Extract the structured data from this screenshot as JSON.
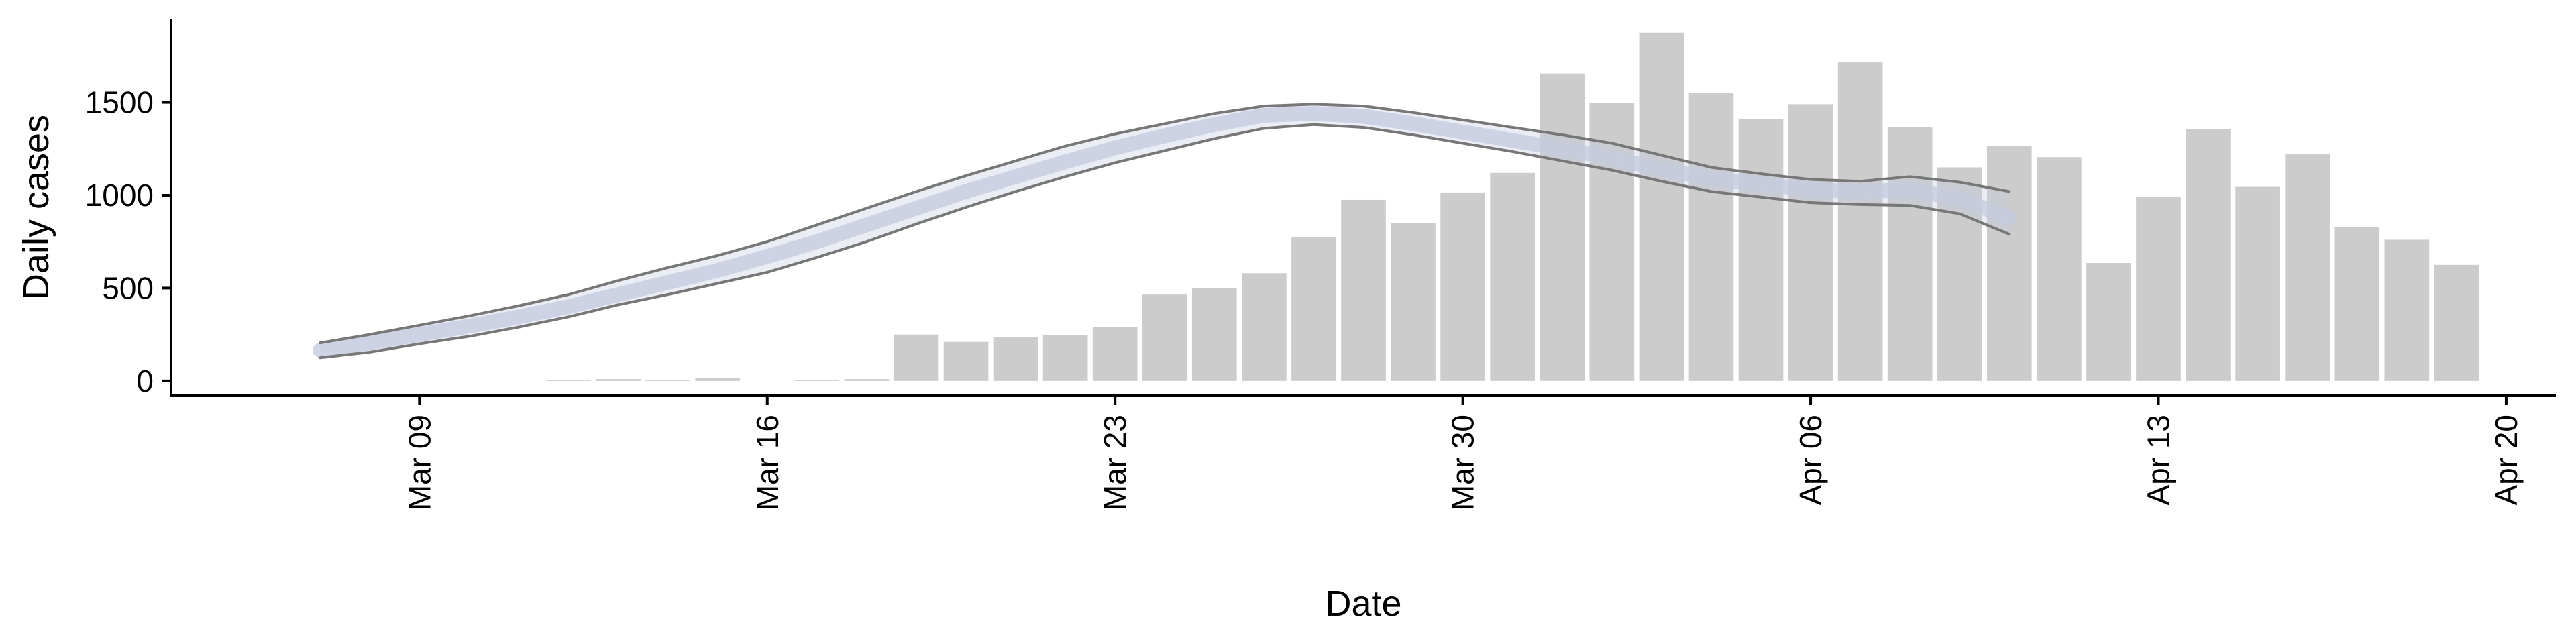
{
  "chart_data": {
    "type": "bar",
    "title": "",
    "xlabel": "Date",
    "ylabel": "Daily cases",
    "ylim": [
      -80,
      1950
    ],
    "yticks": [
      0,
      500,
      1000,
      1500
    ],
    "xticks": [
      {
        "date": "2020-03-09",
        "label": "Mar 09"
      },
      {
        "date": "2020-03-16",
        "label": "Mar 16"
      },
      {
        "date": "2020-03-23",
        "label": "Mar 23"
      },
      {
        "date": "2020-03-30",
        "label": "Mar 30"
      },
      {
        "date": "2020-04-06",
        "label": "Apr 06"
      },
      {
        "date": "2020-04-13",
        "label": "Apr 13"
      },
      {
        "date": "2020-04-20",
        "label": "Apr 20"
      }
    ],
    "xlim": [
      "2020-03-04",
      "2020-04-21"
    ],
    "grid": false,
    "legend": "none",
    "bars": {
      "color": "#cccccc",
      "x": [
        "2020-03-12",
        "2020-03-13",
        "2020-03-14",
        "2020-03-15",
        "2020-03-17",
        "2020-03-18",
        "2020-03-19",
        "2020-03-20",
        "2020-03-21",
        "2020-03-22",
        "2020-03-23",
        "2020-03-24",
        "2020-03-25",
        "2020-03-26",
        "2020-03-27",
        "2020-03-28",
        "2020-03-29",
        "2020-03-30",
        "2020-03-31",
        "2020-04-01",
        "2020-04-02",
        "2020-04-03",
        "2020-04-04",
        "2020-04-05",
        "2020-04-06",
        "2020-04-07",
        "2020-04-08",
        "2020-04-09",
        "2020-04-10",
        "2020-04-11",
        "2020-04-12",
        "2020-04-13",
        "2020-04-14",
        "2020-04-15",
        "2020-04-16",
        "2020-04-17",
        "2020-04-18",
        "2020-04-19"
      ],
      "values": [
        5,
        10,
        5,
        15,
        5,
        10,
        250,
        210,
        235,
        245,
        290,
        465,
        500,
        580,
        775,
        975,
        850,
        1015,
        1120,
        1655,
        1495,
        1875,
        1550,
        1410,
        1490,
        1715,
        1365,
        1150,
        1265,
        1205,
        635,
        990,
        1355,
        1045,
        1220,
        830,
        760,
        625
      ]
    },
    "fit": {
      "line_color": "#777777",
      "band_color": "#c5cce0",
      "x": [
        "2020-03-07",
        "2020-03-08",
        "2020-03-09",
        "2020-03-10",
        "2020-03-11",
        "2020-03-12",
        "2020-03-13",
        "2020-03-14",
        "2020-03-15",
        "2020-03-16",
        "2020-03-17",
        "2020-03-18",
        "2020-03-19",
        "2020-03-20",
        "2020-03-21",
        "2020-03-22",
        "2020-03-23",
        "2020-03-24",
        "2020-03-25",
        "2020-03-26",
        "2020-03-27",
        "2020-03-28",
        "2020-03-29",
        "2020-03-30",
        "2020-03-31",
        "2020-04-01",
        "2020-04-02",
        "2020-04-03",
        "2020-04-04",
        "2020-04-05",
        "2020-04-06",
        "2020-04-07",
        "2020-04-08",
        "2020-04-09",
        "2020-04-10"
      ],
      "mean": [
        165,
        205,
        250,
        295,
        345,
        400,
        465,
        530,
        595,
        670,
        750,
        840,
        930,
        1020,
        1100,
        1180,
        1255,
        1320,
        1380,
        1430,
        1440,
        1425,
        1385,
        1340,
        1295,
        1250,
        1200,
        1140,
        1090,
        1060,
        1030,
        1020,
        1030,
        980,
        880
      ],
      "upper": [
        205,
        250,
        300,
        350,
        405,
        465,
        540,
        610,
        675,
        750,
        840,
        930,
        1020,
        1105,
        1185,
        1265,
        1330,
        1385,
        1440,
        1480,
        1490,
        1480,
        1445,
        1405,
        1365,
        1325,
        1280,
        1215,
        1150,
        1115,
        1085,
        1075,
        1100,
        1070,
        1020
      ],
      "lower": [
        125,
        155,
        200,
        240,
        290,
        345,
        410,
        465,
        525,
        585,
        665,
        750,
        845,
        935,
        1020,
        1100,
        1175,
        1240,
        1305,
        1360,
        1380,
        1365,
        1325,
        1280,
        1235,
        1185,
        1135,
        1075,
        1020,
        990,
        960,
        950,
        945,
        900,
        790
      ]
    }
  }
}
